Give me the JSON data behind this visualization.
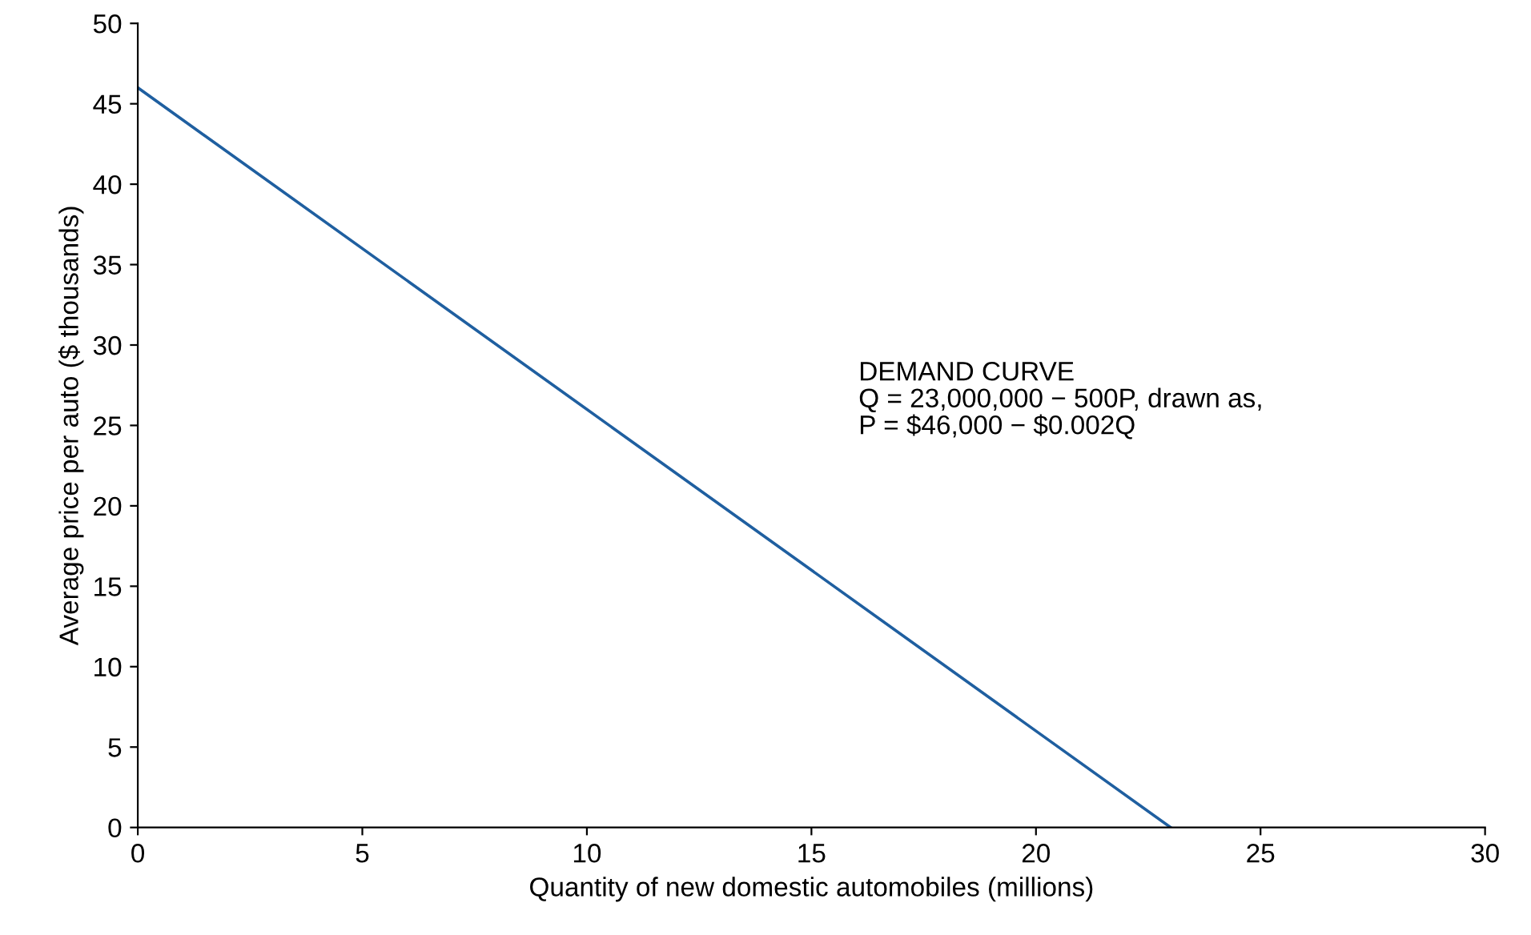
{
  "chart_data": {
    "type": "line",
    "xlabel": "Quantity of new domestic automobiles (millions)",
    "ylabel": "Average price per auto ($ thousands)",
    "x": [
      0,
      23
    ],
    "series": [
      {
        "color": "#1f5fa0",
        "values": [
          46,
          0
        ]
      }
    ],
    "xlim": [
      0,
      30
    ],
    "xticks": [
      0,
      5,
      10,
      15,
      20,
      25,
      30
    ],
    "ylim": [
      0,
      50
    ],
    "yticks": [
      0,
      5,
      10,
      15,
      20,
      25,
      30,
      35,
      40,
      45,
      50
    ],
    "grid": false,
    "legend": false,
    "marker": "none",
    "line_style": "solid",
    "annotations": [
      "DEMAND CURVE\nQ = 23,000,000 − 500P, drawn as,\nP = $46,000 − $0.002Q"
    ]
  }
}
